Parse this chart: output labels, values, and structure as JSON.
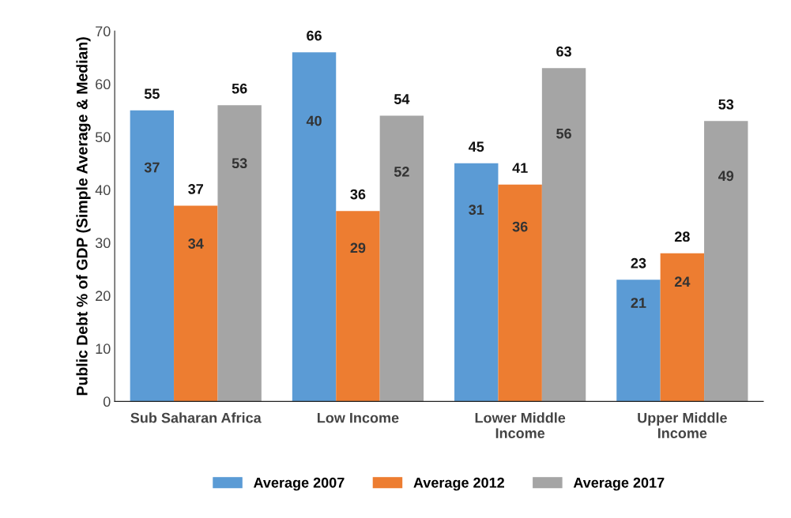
{
  "chart_data": {
    "type": "bar",
    "ylabel": "Public Debt % of GDP (Simple Average & Median)",
    "categories": [
      "Sub Saharan Africa",
      "Low Income",
      "Lower Middle\nIncome",
      "Upper Middle\nIncome"
    ],
    "series": [
      {
        "name": "Average 2007",
        "color": "#5b9bd5",
        "values": [
          55,
          66,
          45,
          23
        ]
      },
      {
        "name": "Average 2012",
        "color": "#ed7d31",
        "values": [
          37,
          36,
          41,
          28
        ]
      },
      {
        "name": "Average 2017",
        "color": "#a5a5a5",
        "values": [
          56,
          54,
          63,
          53
        ]
      }
    ],
    "data_labels": true,
    "annotations": [
      "37",
      "34",
      "53",
      "40",
      "29",
      "52",
      "31",
      "36",
      "56",
      "21",
      "24",
      "49"
    ],
    "ylim": [
      0,
      70
    ],
    "yticks": [
      0,
      10,
      20,
      30,
      40,
      50,
      60,
      70
    ],
    "grid": false,
    "legend": "bottom"
  }
}
